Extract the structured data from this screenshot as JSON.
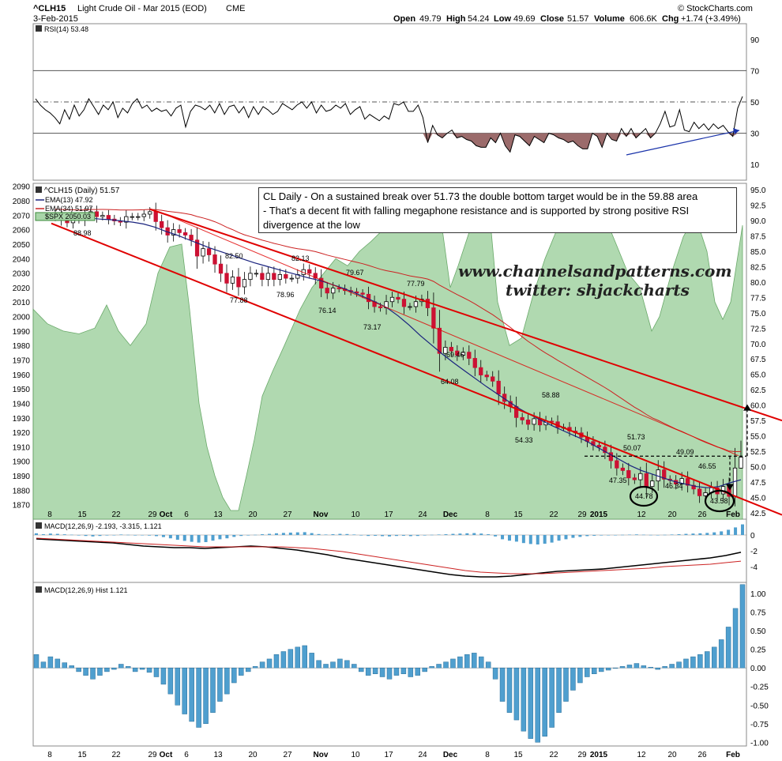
{
  "header": {
    "symbol": "^CLH15",
    "name": "Light Crude Oil - Mar 2015 (EOD)",
    "exchange": "CME",
    "date": "3-Feb-2015",
    "copyright": "© StockCharts.com",
    "open_label": "Open",
    "open": "49.79",
    "high_label": "High",
    "high": "54.24",
    "low_label": "Low",
    "low": "49.69",
    "close_label": "Close",
    "close": "51.57",
    "volume_label": "Volume",
    "volume": "606.6K",
    "chg_label": "Chg",
    "chg": "+1.74 (+3.49%)"
  },
  "annotation": {
    "line1": "CL Daily - On a sustained break over 51.73 the double bottom target would be in the 59.88 area",
    "line2": "- That's a decent fit with falling megaphone resistance and is supported by strong positive RSI",
    "line3": "divergence at the low"
  },
  "watermark": {
    "site": "www.channelsandpatterns.com",
    "twitter": "twitter: shjackcharts"
  },
  "legend": {
    "main": "^CLH15 (Daily) 51.57",
    "ema13": "EMA(13) 47.92",
    "ema34": "EMA(34) 51.97",
    "spx": "$SPX 2050.03"
  },
  "colors": {
    "up": "#ffffff",
    "down": "#cc1133",
    "ema13": "#1a237e",
    "ema34": "#cc2222",
    "spx_fill": "#a8d5a8",
    "trend": "#e00000",
    "macd": "#000000",
    "signal": "#cc2222",
    "hist": "#4f9fcf",
    "rsi_fill": "#9b6b6b",
    "rsi_trend": "#1a33aa"
  },
  "chart_data": [
    {
      "type": "line",
      "title": "RSI(14) 53.48",
      "ylim": [
        0,
        100
      ],
      "y_ticks": [
        10,
        30,
        50,
        70,
        90
      ],
      "reference_lines": [
        30,
        50,
        70
      ],
      "values": [
        52,
        48,
        45,
        43,
        40,
        36,
        45,
        39,
        48,
        41,
        45,
        52,
        47,
        42,
        48,
        45,
        50,
        40,
        46,
        43,
        49,
        52,
        46,
        48,
        44,
        46,
        44,
        45,
        41,
        46,
        48,
        34,
        44,
        48,
        47,
        45,
        48,
        43,
        49,
        42,
        47,
        48,
        43,
        47,
        40,
        47,
        42,
        47,
        45,
        42,
        44,
        49,
        47,
        45,
        48,
        50,
        46,
        50,
        43,
        48,
        44,
        45,
        48,
        46,
        49,
        42,
        45,
        47,
        39,
        42,
        40,
        38,
        41,
        39,
        49,
        48,
        50,
        44,
        44,
        48,
        40,
        24,
        35,
        29,
        27,
        30,
        32,
        27,
        28,
        26,
        25,
        22,
        21,
        21,
        27,
        24,
        30,
        22,
        18,
        29,
        28,
        25,
        22,
        28,
        26,
        24,
        30,
        29,
        27,
        26,
        24,
        25,
        22,
        20,
        20,
        30,
        28,
        21,
        30,
        26,
        25,
        33,
        28,
        33,
        27,
        30,
        33,
        27,
        30,
        36,
        44,
        34,
        35,
        45,
        32,
        31,
        37,
        33,
        36,
        32,
        36,
        33,
        35,
        31,
        28,
        46,
        53.48
      ]
    },
    {
      "type": "candlestick",
      "title": "^CLH15 (Daily) 51.57",
      "ylim": [
        41.5,
        96
      ],
      "y_ticks": [
        42.5,
        45.0,
        47.5,
        50.0,
        52.5,
        55.0,
        57.5,
        60.0,
        62.5,
        65.0,
        67.5,
        70.0,
        72.5,
        75.0,
        77.5,
        80.0,
        82.5,
        85.0,
        87.5,
        90.0,
        92.5,
        95.0
      ],
      "spx_ylim": [
        1860,
        2092
      ],
      "spx_ticks": [
        1870,
        1880,
        1890,
        1900,
        1910,
        1920,
        1930,
        1940,
        1950,
        1960,
        1970,
        1980,
        1990,
        2000,
        2010,
        2020,
        2030,
        2040,
        2050,
        2060,
        2070,
        2080,
        2090
      ],
      "x_tick_labels": [
        "8",
        "15",
        "22",
        "29",
        "Oct",
        "6",
        "13",
        "20",
        "27",
        "Nov",
        "10",
        "17",
        "24",
        "Dec",
        "8",
        "15",
        "22",
        "29",
        "2015",
        "12",
        "20",
        "26",
        "Feb"
      ],
      "closes": [
        90.6,
        90.0,
        89.6,
        90.3,
        90.1,
        91.0,
        91.4,
        90.6,
        90.8,
        90.2,
        89.9,
        89.7,
        90.6,
        90.6,
        90.6,
        91.0,
        91.4,
        89.8,
        88.8,
        87.6,
        88.5,
        88.0,
        87.6,
        86.8,
        84.2,
        85.4,
        84.4,
        82.9,
        81.4,
        79.8,
        80.8,
        79.2,
        80.4,
        81.4,
        81.4,
        80.4,
        81.4,
        80.4,
        81.2,
        80.6,
        80.6,
        81.2,
        82.0,
        81.4,
        80.6,
        79.0,
        78.2,
        79.0,
        78.9,
        78.6,
        78.4,
        78.2,
        78.0,
        76.8,
        76.0,
        75.8,
        76.8,
        77.5,
        77.2,
        76.0,
        76.0,
        76.8,
        77.2,
        75.8,
        72.5,
        68.4,
        69.4,
        68.8,
        68.1,
        68.6,
        67.6,
        66.1,
        64.9,
        64.6,
        63.9,
        61.8,
        60.6,
        59.8,
        58.0,
        57.6,
        56.9,
        57.8,
        56.8,
        57.4,
        57.3,
        56.4,
        56.4,
        55.8,
        55.5,
        54.8,
        54.1,
        53.5,
        53.2,
        52.3,
        51.0,
        49.8,
        49.4,
        48.2,
        47.9,
        48.9,
        46.8,
        47.7,
        49.5,
        48.0,
        47.8,
        47.2,
        48.1,
        47.0,
        46.4,
        45.3,
        45.8,
        46.6,
        45.6,
        46.8,
        45.2,
        49.8,
        51.57
      ],
      "price_labels": [
        {
          "text": "88.98",
          "price": 88.98
        },
        {
          "text": "82.50",
          "price": 82.5
        },
        {
          "text": "77.88",
          "price": 77.88
        },
        {
          "text": "82.13",
          "price": 82.13
        },
        {
          "text": "78.96",
          "price": 78.96
        },
        {
          "text": "79.67",
          "price": 79.67
        },
        {
          "text": "76.14",
          "price": 76.14
        },
        {
          "text": "77.79",
          "price": 77.79
        },
        {
          "text": "73.17",
          "price": 73.17
        },
        {
          "text": "69.46",
          "price": 69.46
        },
        {
          "text": "64.08",
          "price": 64.08
        },
        {
          "text": "58.88",
          "price": 58.88
        },
        {
          "text": "54.33",
          "price": 54.33
        },
        {
          "text": "50.07",
          "price": 50.07
        },
        {
          "text": "51.73",
          "price": 51.73
        },
        {
          "text": "47.35",
          "price": 47.35
        },
        {
          "text": "49.09",
          "price": 49.09
        },
        {
          "text": "46.55",
          "price": 46.55
        },
        {
          "text": "46.34",
          "price": 46.34
        },
        {
          "text": "44.78",
          "price": 44.78
        },
        {
          "text": "43.58",
          "price": 43.58
        }
      ],
      "double_bottom_neckline": 51.73,
      "target": 59.88,
      "ema13_values": [
        91.0,
        90.8,
        90.6,
        90.4,
        90.2,
        90.1,
        89.9,
        89.7,
        89.4,
        88.9,
        88.2,
        87.6,
        86.9,
        86.2,
        85.5,
        84.9,
        84.3,
        83.7,
        83.1,
        82.6,
        82.1,
        81.6,
        81.1,
        80.6,
        80.2,
        79.6,
        79.0,
        78.3,
        77.5,
        76.7,
        75.8,
        74.5,
        73.0,
        71.3,
        69.8,
        68.3,
        66.9,
        65.6,
        64.3,
        63.0,
        61.8,
        60.6,
        59.4,
        58.4,
        57.5,
        56.6,
        55.8,
        55.0,
        54.2,
        53.2,
        52.2,
        51.2,
        50.2,
        49.4,
        48.8,
        48.2,
        47.6,
        47.2,
        46.8,
        46.6,
        46.8,
        47.4,
        47.9
      ]
    },
    {
      "type": "line",
      "title": "MACD(12,26,9) -2.193, -3.315, 1.121",
      "ylim": [
        -6,
        2
      ],
      "y_ticks": [
        0,
        -2,
        -4
      ],
      "series": [
        {
          "name": "MACD(12,26,9)",
          "values": [
            -0.5,
            -0.6,
            -0.7,
            -0.8,
            -0.9,
            -1.0,
            -1.2,
            -1.4,
            -1.5,
            -1.6,
            -1.6,
            -1.7,
            -1.6,
            -1.5,
            -1.4,
            -1.5,
            -1.7,
            -1.9,
            -2.2,
            -2.5,
            -2.9,
            -3.2,
            -3.5,
            -3.8,
            -4.1,
            -4.4,
            -4.7,
            -5.0,
            -5.2,
            -5.3,
            -5.3,
            -5.2,
            -5.0,
            -4.8,
            -4.6,
            -4.5,
            -4.4,
            -4.3,
            -4.1,
            -3.9,
            -3.7,
            -3.5,
            -3.3,
            -3.1,
            -2.9,
            -2.6,
            -2.193
          ]
        },
        {
          "name": "signal",
          "values": [
            -0.4,
            -0.5,
            -0.6,
            -0.7,
            -0.8,
            -0.9,
            -1.0,
            -1.1,
            -1.2,
            -1.3,
            -1.4,
            -1.5,
            -1.5,
            -1.5,
            -1.5,
            -1.5,
            -1.5,
            -1.6,
            -1.7,
            -1.9,
            -2.1,
            -2.4,
            -2.7,
            -3.0,
            -3.3,
            -3.6,
            -3.9,
            -4.2,
            -4.5,
            -4.7,
            -4.8,
            -4.9,
            -4.9,
            -4.9,
            -4.8,
            -4.7,
            -4.6,
            -4.5,
            -4.4,
            -4.3,
            -4.2,
            -4.0,
            -3.9,
            -3.8,
            -3.7,
            -3.5,
            -3.315
          ]
        }
      ]
    },
    {
      "type": "bar",
      "title": "MACD(12,26,9) Hist 1.121",
      "ylim": [
        -1.05,
        1.15
      ],
      "y_ticks": [
        1.0,
        0.75,
        0.5,
        0.25,
        0.0,
        -0.25,
        -0.5,
        -0.75,
        -1.0
      ],
      "values": [
        0.18,
        0.08,
        0.15,
        0.12,
        0.07,
        0.03,
        -0.05,
        -0.1,
        -0.15,
        -0.1,
        -0.05,
        -0.02,
        0.05,
        0.02,
        -0.05,
        -0.02,
        -0.06,
        -0.12,
        -0.22,
        -0.35,
        -0.5,
        -0.62,
        -0.72,
        -0.8,
        -0.75,
        -0.6,
        -0.45,
        -0.35,
        -0.2,
        -0.1,
        -0.05,
        0.02,
        0.08,
        0.12,
        0.18,
        0.22,
        0.25,
        0.28,
        0.3,
        0.2,
        0.1,
        0.05,
        0.08,
        0.12,
        0.1,
        0.05,
        -0.05,
        -0.1,
        -0.08,
        -0.12,
        -0.15,
        -0.1,
        -0.08,
        -0.12,
        -0.1,
        -0.05,
        0.02,
        0.05,
        0.08,
        0.12,
        0.15,
        0.18,
        0.2,
        0.15,
        0.08,
        -0.15,
        -0.45,
        -0.6,
        -0.7,
        -0.85,
        -0.95,
        -1.0,
        -0.92,
        -0.8,
        -0.6,
        -0.45,
        -0.3,
        -0.2,
        -0.12,
        -0.08,
        -0.05,
        -0.03,
        0.0,
        0.02,
        0.04,
        0.06,
        0.03,
        0.01,
        -0.02,
        0.02,
        0.05,
        0.08,
        0.12,
        0.15,
        0.18,
        0.22,
        0.28,
        0.38,
        0.55,
        0.8,
        1.121
      ]
    }
  ]
}
